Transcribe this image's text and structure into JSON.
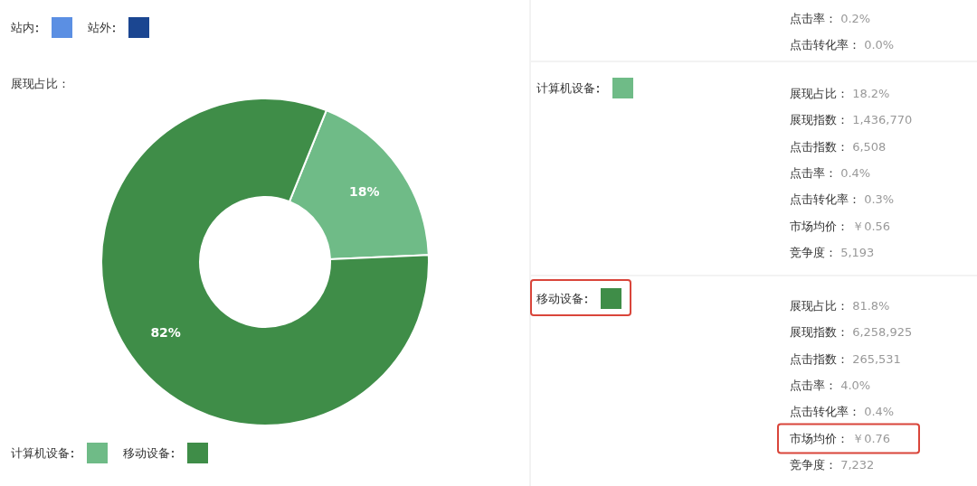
{
  "chart_data": [
    {
      "type": "other",
      "series": [
        {
          "name": "站内",
          "color": "#5b8fe3"
        },
        {
          "name": "站外",
          "color": "#1b4691"
        }
      ],
      "legend": "top left"
    },
    {
      "type": "donut",
      "title": "展现占比：",
      "categories": [
        "计算机设备",
        "移动设备"
      ],
      "values": [
        18.2,
        81.8
      ],
      "value_labels": [
        "18%",
        "82%"
      ],
      "colors": [
        "#6fbb87",
        "#3f8d48"
      ],
      "legend": "bottom left"
    },
    {
      "type": "other",
      "categories": [
        "计算机设备",
        "移动设备"
      ],
      "colors": [
        "#6fbb87",
        "#3f8d48"
      ],
      "annotations": [
        "点击率： 0.2%",
        "点击转化率： 0.0%",
        "展现占比： 18.2%",
        "展现指数： 1,436,770",
        "点击指数： 6,508",
        "点击率： 0.4%",
        "点击转化率： 0.3%",
        "市场均价： ￥0.56",
        "竞争度： 5,193",
        "展现占比： 81.8%",
        "展现指数： 6,258,925",
        "点击指数： 265,531",
        "点击率： 4.0%",
        "点击转化率： 0.4%",
        "市场均价： ￥0.76",
        "竞争度： 7,232"
      ]
    }
  ]
}
